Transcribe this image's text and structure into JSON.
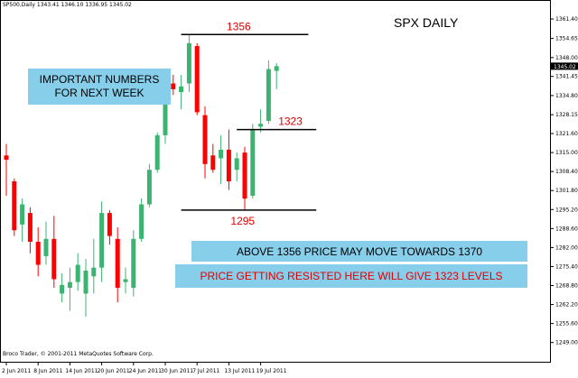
{
  "header": "SP500,Daily  1343.41 1346.10 1336.95 1345.02",
  "title": "SPX DAILY",
  "footer": "Broco Trader, © 2001-2011 MetaQuotes Software Corp.",
  "current_price_label": "1345.02",
  "notes": {
    "important": "IMPORTANT NUMBERS\nFOR NEXT WEEK",
    "above": "ABOVE 1356 PRICE MAY MOVE TOWARDS 1370",
    "resisted": "PRICE GETTING RESISTED HERE WILL GIVE 1323 LEVELS"
  },
  "colors": {
    "up": "#3cb371",
    "down": "#ff0000",
    "note_box": "#87CEEB",
    "level_label": "#e00000",
    "axis": "#000000"
  },
  "chart_data": {
    "type": "candlestick",
    "title": "SPX DAILY",
    "ylim": [
      1242.0,
      1368.0
    ],
    "y_ticks": [
      "1361.40",
      "1354.65",
      "1348.00",
      "1341.45",
      "1334.80",
      "1328.15",
      "1321.60",
      "1315.00",
      "1308.40",
      "1301.80",
      "1295.20",
      "1288.60",
      "1282.00",
      "1275.40",
      "1268.80",
      "1262.20",
      "1255.60",
      "1249.00"
    ],
    "x_tick_labels": [
      {
        "label": "2 Jun 2011",
        "bar": 0
      },
      {
        "label": "8 Jun 2011",
        "bar": 4
      },
      {
        "label": "14 Jun 2011",
        "bar": 8
      },
      {
        "label": "20 Jun 2011",
        "bar": 12
      },
      {
        "label": "24 Jun 2011",
        "bar": 16
      },
      {
        "label": "30 Jun 2011",
        "bar": 20
      },
      {
        "label": "7 Jul 2011",
        "bar": 24
      },
      {
        "label": "13 Jul 2011",
        "bar": 28
      },
      {
        "label": "19 Jul 2011",
        "bar": 32
      }
    ],
    "candles": [
      {
        "o": 1314.0,
        "h": 1318.0,
        "l": 1300.0,
        "c": 1312.5
      },
      {
        "o": 1305.0,
        "h": 1306.0,
        "l": 1286.0,
        "c": 1288.0
      },
      {
        "o": 1290.0,
        "h": 1299.0,
        "l": 1284.0,
        "c": 1297.0
      },
      {
        "o": 1294.0,
        "h": 1296.0,
        "l": 1280.0,
        "c": 1284.0
      },
      {
        "o": 1284.0,
        "h": 1289.0,
        "l": 1272.0,
        "c": 1276.0
      },
      {
        "o": 1279.0,
        "h": 1291.0,
        "l": 1276.0,
        "c": 1285.0
      },
      {
        "o": 1285.0,
        "h": 1293.0,
        "l": 1268.0,
        "c": 1271.0
      },
      {
        "o": 1266.0,
        "h": 1273.0,
        "l": 1263.0,
        "c": 1269.0
      },
      {
        "o": 1268.0,
        "h": 1275.0,
        "l": 1260.0,
        "c": 1270.0
      },
      {
        "o": 1270.0,
        "h": 1280.0,
        "l": 1267.0,
        "c": 1276.0
      },
      {
        "o": 1266.0,
        "h": 1278.0,
        "l": 1258.0,
        "c": 1274.0
      },
      {
        "o": 1272.0,
        "h": 1285.0,
        "l": 1266.0,
        "c": 1275.0
      },
      {
        "o": 1275.0,
        "h": 1298.0,
        "l": 1270.0,
        "c": 1294.0
      },
      {
        "o": 1294.0,
        "h": 1295.0,
        "l": 1283.0,
        "c": 1286.0
      },
      {
        "o": 1285.0,
        "h": 1289.0,
        "l": 1263.0,
        "c": 1268.0
      },
      {
        "o": 1270.0,
        "h": 1275.0,
        "l": 1266.0,
        "c": 1271.0
      },
      {
        "o": 1268.0,
        "h": 1288.0,
        "l": 1265.0,
        "c": 1285.0
      },
      {
        "o": 1285.0,
        "h": 1299.0,
        "l": 1284.0,
        "c": 1297.0
      },
      {
        "o": 1297.0,
        "h": 1311.0,
        "l": 1296.0,
        "c": 1309.0
      },
      {
        "o": 1309.0,
        "h": 1322.0,
        "l": 1308.0,
        "c": 1321.0
      },
      {
        "o": 1321.0,
        "h": 1340.0,
        "l": 1318.0,
        "c": 1339.0
      },
      {
        "o": 1339.0,
        "h": 1342.0,
        "l": 1335.0,
        "c": 1337.0
      },
      {
        "o": 1336.0,
        "h": 1342.0,
        "l": 1330.0,
        "c": 1338.0
      },
      {
        "o": 1339.0,
        "h": 1356.0,
        "l": 1336.0,
        "c": 1353.0
      },
      {
        "o": 1352.0,
        "h": 1353.0,
        "l": 1328.0,
        "c": 1329.0
      },
      {
        "o": 1328.0,
        "h": 1331.0,
        "l": 1306.0,
        "c": 1311.0
      },
      {
        "o": 1314.0,
        "h": 1318.0,
        "l": 1308.0,
        "c": 1309.0
      },
      {
        "o": 1313.0,
        "h": 1321.0,
        "l": 1304.0,
        "c": 1316.0
      },
      {
        "o": 1316.0,
        "h": 1323.0,
        "l": 1302.0,
        "c": 1305.0
      },
      {
        "o": 1309.0,
        "h": 1315.0,
        "l": 1305.0,
        "c": 1313.0
      },
      {
        "o": 1315.0,
        "h": 1317.0,
        "l": 1295.0,
        "c": 1299.0
      },
      {
        "o": 1300.0,
        "h": 1325.0,
        "l": 1299.0,
        "c": 1323.0
      },
      {
        "o": 1324.0,
        "h": 1330.0,
        "l": 1322.0,
        "c": 1325.0
      },
      {
        "o": 1326.0,
        "h": 1347.0,
        "l": 1325.0,
        "c": 1344.0
      },
      {
        "o": 1343.4,
        "h": 1346.1,
        "l": 1337.0,
        "c": 1345.0
      }
    ],
    "levels": [
      {
        "value": 1356,
        "label": "1356",
        "from_bar": 22,
        "to_bar": 38
      },
      {
        "value": 1323,
        "label": "1323",
        "from_bar": 29,
        "to_bar": 39
      },
      {
        "value": 1295,
        "label": "1295",
        "from_bar": 22,
        "to_bar": 39
      }
    ]
  }
}
